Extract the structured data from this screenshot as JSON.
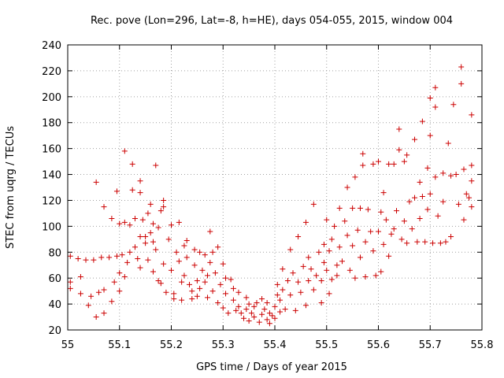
{
  "chart_data": {
    "type": "scatter",
    "title": "Rec. pove (Lon=296, Lat=-8, h=HE), days 054-055, 2015, window 004",
    "xlabel": "GPS time / Days of year 2015",
    "ylabel": "STEC from uqrg / TECUs",
    "xlim": [
      55,
      55.8
    ],
    "ylim": [
      20,
      240
    ],
    "xticks": [
      "55",
      "55.1",
      "55.2",
      "55.3",
      "55.4",
      "55.5",
      "55.6",
      "55.7",
      "55.8"
    ],
    "yticks": [
      "20",
      "40",
      "60",
      "80",
      "100",
      "120",
      "140",
      "160",
      "180",
      "200",
      "220",
      "240"
    ],
    "grid": true,
    "marker": "+",
    "color": "#cc0000",
    "series": [
      {
        "points": [
          [
            55.005,
            77
          ],
          [
            55.005,
            57
          ],
          [
            55.005,
            52
          ],
          [
            55.02,
            75
          ],
          [
            55.025,
            61
          ],
          [
            55.025,
            48
          ],
          [
            55.035,
            74
          ],
          [
            55.04,
            39
          ],
          [
            55.045,
            46
          ],
          [
            55.05,
            74
          ],
          [
            55.055,
            134
          ],
          [
            55.055,
            30
          ],
          [
            55.06,
            49
          ],
          [
            55.065,
            76
          ],
          [
            55.07,
            115
          ],
          [
            55.07,
            51
          ],
          [
            55.07,
            33
          ],
          [
            55.08,
            76
          ],
          [
            55.085,
            106
          ],
          [
            55.085,
            42
          ],
          [
            55.09,
            57
          ],
          [
            55.095,
            77
          ],
          [
            55.095,
            127
          ],
          [
            55.1,
            102
          ],
          [
            55.1,
            50
          ],
          [
            55.1,
            64
          ],
          [
            55.105,
            78
          ],
          [
            55.11,
            158
          ],
          [
            55.11,
            103
          ],
          [
            55.11,
            61
          ],
          [
            55.115,
            72
          ],
          [
            55.12,
            80
          ],
          [
            55.12,
            101
          ],
          [
            55.125,
            148
          ],
          [
            55.125,
            128
          ],
          [
            55.13,
            106
          ],
          [
            55.13,
            84
          ],
          [
            55.135,
            75
          ],
          [
            55.14,
            135
          ],
          [
            55.14,
            126
          ],
          [
            55.14,
            92
          ],
          [
            55.14,
            68
          ],
          [
            55.145,
            105
          ],
          [
            55.15,
            87
          ],
          [
            55.15,
            92
          ],
          [
            55.155,
            110
          ],
          [
            55.155,
            74
          ],
          [
            55.16,
            95
          ],
          [
            55.16,
            117
          ],
          [
            55.165,
            102
          ],
          [
            55.165,
            88
          ],
          [
            55.165,
            65
          ],
          [
            55.17,
            147
          ],
          [
            55.17,
            82
          ],
          [
            55.175,
            99
          ],
          [
            55.175,
            58
          ],
          [
            55.18,
            112
          ],
          [
            55.18,
            56
          ],
          [
            55.185,
            120
          ],
          [
            55.185,
            115
          ],
          [
            55.185,
            71
          ],
          [
            55.19,
            49
          ],
          [
            55.195,
            90
          ],
          [
            55.2,
            66
          ],
          [
            55.2,
            101
          ],
          [
            55.205,
            48
          ],
          [
            55.205,
            44
          ],
          [
            55.21,
            80
          ],
          [
            55.215,
            103
          ],
          [
            55.215,
            73
          ],
          [
            55.22,
            57
          ],
          [
            55.22,
            43
          ],
          [
            55.225,
            85
          ],
          [
            55.225,
            62
          ],
          [
            55.23,
            89
          ],
          [
            55.23,
            76
          ],
          [
            55.235,
            55
          ],
          [
            55.24,
            50
          ],
          [
            55.24,
            44
          ],
          [
            55.245,
            82
          ],
          [
            55.245,
            70
          ],
          [
            55.25,
            58
          ],
          [
            55.25,
            46
          ],
          [
            55.255,
            80
          ],
          [
            55.255,
            52
          ],
          [
            55.26,
            66
          ],
          [
            55.265,
            78
          ],
          [
            55.265,
            57
          ],
          [
            55.27,
            45
          ],
          [
            55.27,
            62
          ],
          [
            55.275,
            96
          ],
          [
            55.275,
            72
          ],
          [
            55.28,
            80
          ],
          [
            55.28,
            50
          ],
          [
            55.285,
            64
          ],
          [
            55.29,
            84
          ],
          [
            55.29,
            41
          ],
          [
            55.295,
            55
          ],
          [
            55.3,
            71
          ],
          [
            55.3,
            37
          ],
          [
            55.305,
            48
          ],
          [
            55.305,
            60
          ],
          [
            55.31,
            33
          ],
          [
            55.315,
            59
          ],
          [
            55.32,
            52
          ],
          [
            55.32,
            43
          ],
          [
            55.325,
            35
          ],
          [
            55.33,
            38
          ],
          [
            55.33,
            49
          ],
          [
            55.335,
            33
          ],
          [
            55.34,
            29
          ],
          [
            55.345,
            36
          ],
          [
            55.345,
            45
          ],
          [
            55.35,
            40
          ],
          [
            55.35,
            27
          ],
          [
            55.355,
            33
          ],
          [
            55.36,
            30
          ],
          [
            55.36,
            38
          ],
          [
            55.365,
            41
          ],
          [
            55.37,
            26
          ],
          [
            55.375,
            32
          ],
          [
            55.375,
            44
          ],
          [
            55.38,
            36
          ],
          [
            55.385,
            28
          ],
          [
            55.385,
            41
          ],
          [
            55.39,
            25
          ],
          [
            55.39,
            33
          ],
          [
            55.395,
            31
          ],
          [
            55.4,
            38
          ],
          [
            55.4,
            29
          ],
          [
            55.405,
            47
          ],
          [
            55.405,
            55
          ],
          [
            55.41,
            34
          ],
          [
            55.41,
            43
          ],
          [
            55.415,
            51
          ],
          [
            55.415,
            67
          ],
          [
            55.42,
            36
          ],
          [
            55.425,
            58
          ],
          [
            55.43,
            82
          ],
          [
            55.43,
            47
          ],
          [
            55.435,
            64
          ],
          [
            55.44,
            35
          ],
          [
            55.445,
            92
          ],
          [
            55.445,
            57
          ],
          [
            55.45,
            49
          ],
          [
            55.455,
            69
          ],
          [
            55.46,
            103
          ],
          [
            55.46,
            39
          ],
          [
            55.465,
            58
          ],
          [
            55.465,
            76
          ],
          [
            55.47,
            67
          ],
          [
            55.475,
            117
          ],
          [
            55.475,
            51
          ],
          [
            55.48,
            62
          ],
          [
            55.485,
            80
          ],
          [
            55.49,
            41
          ],
          [
            55.49,
            58
          ],
          [
            55.495,
            86
          ],
          [
            55.495,
            72
          ],
          [
            55.5,
            105
          ],
          [
            55.5,
            66
          ],
          [
            55.505,
            81
          ],
          [
            55.505,
            48
          ],
          [
            55.51,
            90
          ],
          [
            55.51,
            59
          ],
          [
            55.515,
            100
          ],
          [
            55.52,
            70
          ],
          [
            55.52,
            62
          ],
          [
            55.525,
            114
          ],
          [
            55.525,
            84
          ],
          [
            55.53,
            73
          ],
          [
            55.535,
            104
          ],
          [
            55.54,
            130
          ],
          [
            55.54,
            93
          ],
          [
            55.545,
            66
          ],
          [
            55.55,
            114
          ],
          [
            55.55,
            85
          ],
          [
            55.555,
            138
          ],
          [
            55.555,
            60
          ],
          [
            55.56,
            97
          ],
          [
            55.565,
            114
          ],
          [
            55.565,
            76
          ],
          [
            55.57,
            147
          ],
          [
            55.57,
            156
          ],
          [
            55.575,
            88
          ],
          [
            55.575,
            61
          ],
          [
            55.58,
            113
          ],
          [
            55.585,
            96
          ],
          [
            55.59,
            148
          ],
          [
            55.59,
            81
          ],
          [
            55.595,
            62
          ],
          [
            55.6,
            150
          ],
          [
            55.6,
            96
          ],
          [
            55.605,
            111
          ],
          [
            55.605,
            65
          ],
          [
            55.61,
            126
          ],
          [
            55.61,
            86
          ],
          [
            55.615,
            105
          ],
          [
            55.62,
            148
          ],
          [
            55.62,
            77
          ],
          [
            55.625,
            94
          ],
          [
            55.63,
            148
          ],
          [
            55.63,
            98
          ],
          [
            55.635,
            112
          ],
          [
            55.64,
            175
          ],
          [
            55.64,
            159
          ],
          [
            55.645,
            90
          ],
          [
            55.65,
            104
          ],
          [
            55.65,
            150
          ],
          [
            55.655,
            155
          ],
          [
            55.655,
            87
          ],
          [
            55.66,
            119
          ],
          [
            55.665,
            98
          ],
          [
            55.67,
            167
          ],
          [
            55.67,
            122
          ],
          [
            55.675,
            88
          ],
          [
            55.68,
            134
          ],
          [
            55.68,
            106
          ],
          [
            55.685,
            181
          ],
          [
            55.685,
            123
          ],
          [
            55.69,
            88
          ],
          [
            55.695,
            145
          ],
          [
            55.695,
            113
          ],
          [
            55.7,
            199
          ],
          [
            55.7,
            170
          ],
          [
            55.7,
            125
          ],
          [
            55.705,
            87
          ],
          [
            55.71,
            207
          ],
          [
            55.71,
            192
          ],
          [
            55.71,
            138
          ],
          [
            55.715,
            108
          ],
          [
            55.72,
            87
          ],
          [
            55.725,
            141
          ],
          [
            55.725,
            119
          ],
          [
            55.73,
            88
          ],
          [
            55.735,
            164
          ],
          [
            55.74,
            139
          ],
          [
            55.74,
            92
          ],
          [
            55.745,
            194
          ],
          [
            55.75,
            140
          ],
          [
            55.755,
            117
          ],
          [
            55.76,
            223
          ],
          [
            55.76,
            210
          ],
          [
            55.765,
            144
          ],
          [
            55.765,
            105
          ],
          [
            55.77,
            125
          ],
          [
            55.775,
            122
          ],
          [
            55.78,
            186
          ],
          [
            55.78,
            147
          ],
          [
            55.78,
            135
          ],
          [
            55.78,
            115
          ]
        ]
      }
    ]
  }
}
